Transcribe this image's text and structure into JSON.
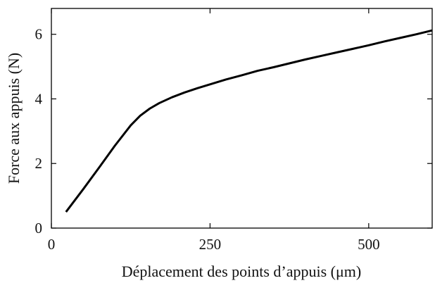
{
  "chart_data": {
    "type": "line",
    "title": "",
    "xlabel": "Déplacement des points d’appuis (μm)",
    "ylabel": "Force aux appuis (N)",
    "xlim": [
      0,
      600
    ],
    "ylim": [
      0,
      6.8
    ],
    "grid": false,
    "legend": "none",
    "xticks": [
      0,
      250,
      500
    ],
    "xtick_labels": [
      "0",
      "250",
      "500"
    ],
    "yticks": [
      0,
      2,
      4,
      6
    ],
    "ytick_labels": [
      "0",
      "2",
      "4",
      "6"
    ],
    "series": [
      {
        "color": "#000000",
        "x": [
          23,
          50,
          75,
          100,
          125,
          140,
          155,
          170,
          190,
          210,
          230,
          250,
          275,
          300,
          325,
          350,
          375,
          400,
          425,
          450,
          475,
          500,
          525,
          550,
          575,
          600
        ],
        "y": [
          0.5,
          1.2,
          1.87,
          2.55,
          3.18,
          3.48,
          3.7,
          3.87,
          4.05,
          4.2,
          4.33,
          4.45,
          4.6,
          4.73,
          4.87,
          4.98,
          5.1,
          5.22,
          5.33,
          5.44,
          5.55,
          5.66,
          5.78,
          5.89,
          6.0,
          6.12
        ]
      }
    ]
  }
}
